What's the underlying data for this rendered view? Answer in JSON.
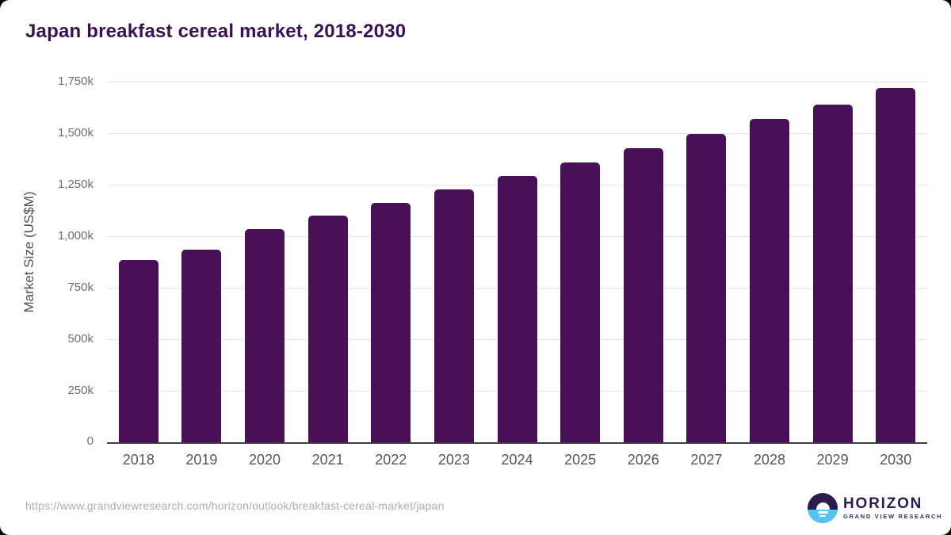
{
  "title": "Japan breakfast cereal market, 2018-2030",
  "source_url": "https://www.grandviewresearch.com/horizon/outlook/breakfast-cereal-market/japan",
  "logo": {
    "name": "HORIZON",
    "subtitle": "GRAND VIEW RESEARCH",
    "icon": "horizon-sun-over-water-icon"
  },
  "colors": {
    "bar": "#4a1057",
    "title": "#3b1053",
    "gridline": "#e5e5e5",
    "axis_line": "#3f3f3f",
    "tick_label": "#6e6e6e",
    "x_label": "#565656",
    "axis_title": "#4f4f4f",
    "url_text": "#adadad",
    "logo_purple": "#2d1b4e",
    "logo_blue": "#56c4f2"
  },
  "chart_data": {
    "type": "bar",
    "title": "Japan breakfast cereal market, 2018-2030",
    "xlabel": "",
    "ylabel": "Market Size (US$M)",
    "categories": [
      "2018",
      "2019",
      "2020",
      "2021",
      "2022",
      "2023",
      "2024",
      "2025",
      "2026",
      "2027",
      "2028",
      "2029",
      "2030"
    ],
    "values": [
      885,
      933,
      1036,
      1099,
      1160,
      1227,
      1291,
      1359,
      1427,
      1498,
      1571,
      1640,
      1719
    ],
    "unit": "k (thousand US$M)",
    "ylim": [
      0,
      1750
    ],
    "grid": "horizontal",
    "legend": "none",
    "yticks": [
      {
        "v": 0,
        "label": "0"
      },
      {
        "v": 250,
        "label": "250k"
      },
      {
        "v": 500,
        "label": "500k"
      },
      {
        "v": 750,
        "label": "750k"
      },
      {
        "v": 1000,
        "label": "1,000k"
      },
      {
        "v": 1250,
        "label": "1,250k"
      },
      {
        "v": 1500,
        "label": "1,500k"
      },
      {
        "v": 1750,
        "label": "1,750k"
      }
    ]
  }
}
